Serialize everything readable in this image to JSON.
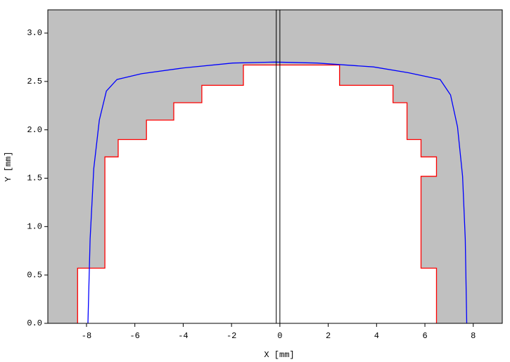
{
  "chart_data": {
    "type": "line",
    "xlabel": "X [mm]",
    "ylabel": "Y [mm]",
    "xlim": [
      -9.6,
      9.2
    ],
    "ylim": [
      0,
      3.24
    ],
    "xticks": [
      -8,
      -6,
      -4,
      -2,
      0,
      2,
      4,
      6,
      8
    ],
    "yticks": [
      {
        "value": 0,
        "label": "0.0"
      },
      0.5,
      {
        "value": 1,
        "label": "1.0"
      },
      1.5,
      {
        "value": 2,
        "label": "2.0"
      },
      2.5,
      {
        "value": 3,
        "label": "3.0"
      }
    ],
    "background": "#c0c0c0",
    "vlines": [
      -0.15,
      0
    ],
    "series": [
      {
        "color": "#ff0000",
        "fill": "#ffffff",
        "x": [
          -8.37,
          -8.37,
          -7.24,
          -7.24,
          -6.69,
          -6.69,
          -5.52,
          -5.52,
          -4.39,
          -4.39,
          -3.23,
          -3.23,
          -1.51,
          -1.51,
          2.47,
          2.47,
          4.68,
          4.68,
          5.26,
          5.26,
          5.84,
          5.84,
          6.48,
          6.48,
          5.84,
          5.84,
          6.48,
          6.48
        ],
        "y": [
          0,
          0.57,
          0.57,
          1.72,
          1.72,
          1.9,
          1.9,
          2.1,
          2.1,
          2.28,
          2.28,
          2.46,
          2.46,
          2.67,
          2.67,
          2.46,
          2.46,
          2.28,
          2.28,
          1.9,
          1.9,
          1.72,
          1.72,
          1.52,
          1.52,
          0.57,
          0.57,
          0
        ]
      },
      {
        "color": "#0000ff",
        "x": [
          -7.94,
          -7.85,
          -7.7,
          -7.47,
          -7.18,
          -6.74,
          -5.73,
          -3.98,
          -1.95,
          -0.2,
          1.54,
          3.87,
          5.32,
          6.63,
          7.06,
          7.35,
          7.56,
          7.67,
          7.73
        ],
        "y": [
          0,
          0.87,
          1.6,
          2.1,
          2.4,
          2.52,
          2.58,
          2.64,
          2.69,
          2.7,
          2.69,
          2.65,
          2.59,
          2.52,
          2.36,
          2.03,
          1.52,
          0.87,
          0
        ]
      }
    ]
  }
}
